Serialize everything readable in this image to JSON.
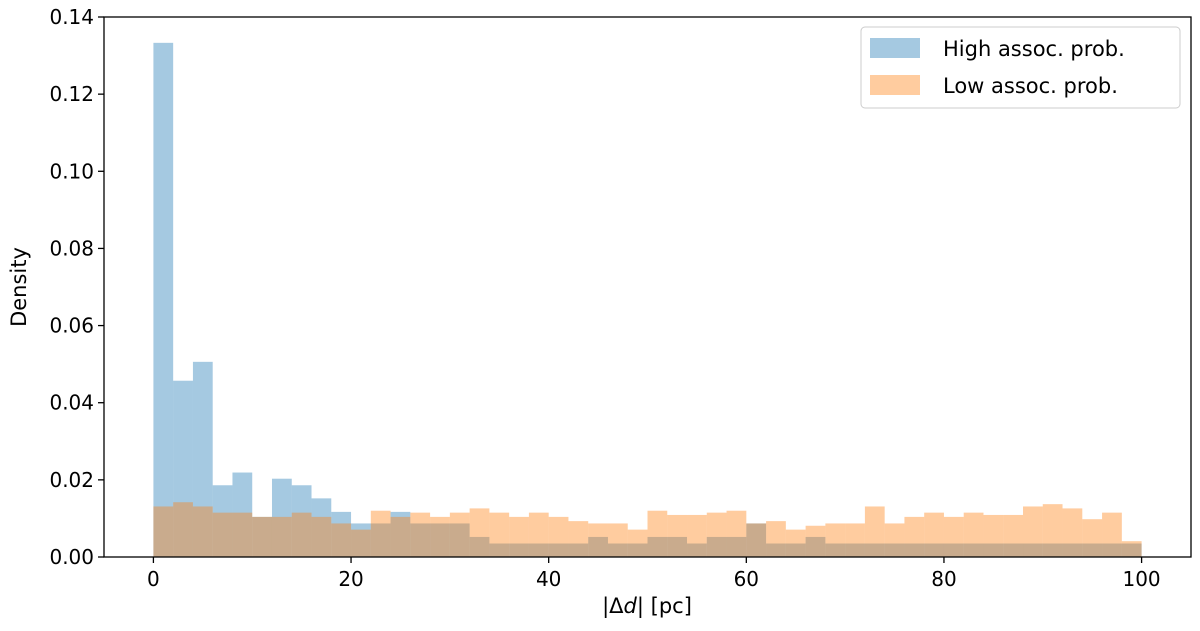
{
  "chart_data": {
    "type": "bar",
    "subtype": "histogram",
    "title": "",
    "xlabel": "|Δd| [pc]",
    "xlabel_plain": "|Δ",
    "xlabel_italic": "d",
    "xlabel_suffix": "| [pc]",
    "ylabel": "Density",
    "xlim": [
      -5,
      105
    ],
    "ylim": [
      0,
      0.14
    ],
    "xticks": [
      0,
      20,
      40,
      60,
      80,
      100
    ],
    "yticks": [
      0.0,
      0.02,
      0.04,
      0.06,
      0.08,
      0.1,
      0.12,
      0.14
    ],
    "xtick_labels": [
      "0",
      "20",
      "40",
      "60",
      "80",
      "100"
    ],
    "ytick_labels": [
      "0.00",
      "0.02",
      "0.04",
      "0.06",
      "0.08",
      "0.10",
      "0.12",
      "0.14"
    ],
    "bin_width": 2,
    "grid": false,
    "legend_position": "top-right",
    "series": [
      {
        "name": "High assoc. prob.",
        "color": "#1f77b4",
        "opacity": 0.4,
        "bin_start": 0,
        "values": [
          0.1333,
          0.0457,
          0.0506,
          0.0186,
          0.0219,
          0.0104,
          0.0203,
          0.0186,
          0.0152,
          0.0117,
          0.0087,
          0.0087,
          0.0117,
          0.0087,
          0.0087,
          0.0087,
          0.0052,
          0.0035,
          0.0035,
          0.0035,
          0.0035,
          0.0035,
          0.0052,
          0.0035,
          0.0035,
          0.0052,
          0.0052,
          0.0035,
          0.0052,
          0.0052,
          0.0087,
          0.0035,
          0.0035,
          0.0052,
          0.0035,
          0.0035,
          0.0035,
          0.0035,
          0.0035,
          0.0035,
          0.0035,
          0.0035,
          0.0035,
          0.0035,
          0.0035,
          0.0035,
          0.0035,
          0.0035,
          0.0035,
          0.0035
        ]
      },
      {
        "name": "Low assoc. prob.",
        "color": "#ff7f0e",
        "opacity": 0.4,
        "bin_start": 0,
        "values": [
          0.0131,
          0.0142,
          0.0131,
          0.0115,
          0.0115,
          0.0104,
          0.0104,
          0.0115,
          0.0104,
          0.0087,
          0.0071,
          0.012,
          0.0104,
          0.0115,
          0.0104,
          0.0115,
          0.0126,
          0.0115,
          0.0104,
          0.0115,
          0.0104,
          0.0093,
          0.0087,
          0.0087,
          0.0071,
          0.012,
          0.0109,
          0.0109,
          0.0115,
          0.012,
          0.0087,
          0.0093,
          0.0071,
          0.0081,
          0.0087,
          0.0087,
          0.0131,
          0.0087,
          0.0104,
          0.0115,
          0.0104,
          0.0115,
          0.0109,
          0.0109,
          0.0131,
          0.0137,
          0.0126,
          0.0098,
          0.0115,
          0.0041
        ]
      }
    ]
  }
}
